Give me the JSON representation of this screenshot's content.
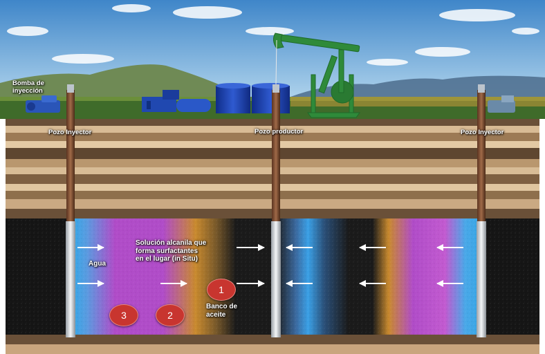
{
  "labels": {
    "bomba_inyeccion_line1": "Bomba de",
    "bomba_inyeccion_line2": "inyección",
    "pozo_inyector_left": "Pozo Inyector",
    "pozo_productor": "Pozo productor",
    "pozo_inyector_right": "Pozo Inyector",
    "agua": "Agua",
    "solucion_line1": "Solución alcanila que",
    "solucion_line2": "forma surfactantes",
    "solucion_line3": "en el lugar (in Situ)",
    "banco_line1": "Banco de",
    "banco_line2": "aceite"
  },
  "zones": [
    {
      "number": "1"
    },
    {
      "number": "2"
    },
    {
      "number": "3"
    }
  ],
  "colors": {
    "sky_top": "#3f86c9",
    "sky_bottom": "#b9d9ef",
    "ground_dark": "#5a4632",
    "ground_light": "#c9a57e",
    "reservoir_black": "#151515",
    "water_blue": "#3aa6e6",
    "magenta": "#b348c9",
    "orange": "#c98a2e",
    "pump_green": "#2f8a3a",
    "tank_blue": "#1c3fa8",
    "badge_red": "#c8352f"
  },
  "icons": [
    "pumpjack-icon",
    "injection-pump-icon",
    "storage-tank-icon",
    "flow-arrow-icon"
  ]
}
